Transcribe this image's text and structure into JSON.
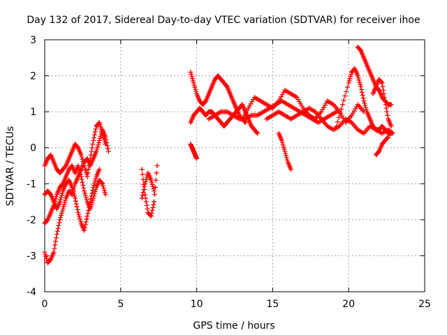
{
  "chart_data": {
    "type": "scatter",
    "title": "Day 132 of 2017, Sidereal Day-to-day VTEC variation (SDTVAR) for receiver ihoe",
    "xlabel": "GPS time / hours",
    "ylabel": "SDTVAR / TECUs",
    "xlim": [
      0,
      25
    ],
    "ylim": [
      -4,
      3
    ],
    "xticks": [
      0,
      5,
      10,
      15,
      20,
      25
    ],
    "yticks": [
      -4,
      -3,
      -2,
      -1,
      0,
      1,
      2,
      3
    ],
    "grid": true,
    "marker": "+",
    "color": "#ff0000",
    "series": [
      {
        "name": "trace-1",
        "x": [
          0.0,
          0.2,
          0.4,
          0.6,
          0.8,
          1.0,
          1.2,
          1.4,
          1.6,
          1.8,
          2.0,
          2.2,
          2.4,
          2.6,
          2.8,
          3.0,
          3.2,
          3.4,
          3.6,
          3.8,
          4.0,
          4.2
        ],
        "y": [
          -2.9,
          -3.2,
          -3.1,
          -2.9,
          -2.4,
          -2.0,
          -1.7,
          -1.4,
          -1.2,
          -1.3,
          -1.0,
          -0.8,
          -0.6,
          -0.4,
          -0.3,
          -0.5,
          -0.3,
          -0.1,
          0.2,
          0.5,
          0.3,
          -0.1
        ]
      },
      {
        "name": "trace-2",
        "x": [
          0.0,
          0.2,
          0.4,
          0.6,
          0.8,
          1.0,
          1.2,
          1.4,
          1.6,
          1.8,
          2.0,
          2.2,
          2.4,
          2.6,
          2.8,
          3.0,
          3.2,
          3.4,
          3.6,
          3.8,
          4.0
        ],
        "y": [
          -2.1,
          -2.0,
          -1.8,
          -1.6,
          -1.3,
          -1.1,
          -1.0,
          -0.8,
          -0.6,
          -0.5,
          -0.7,
          -0.5,
          -0.8,
          -1.2,
          -1.5,
          -1.7,
          -1.4,
          -1.1,
          -0.9,
          -1.0,
          -1.3
        ]
      },
      {
        "name": "trace-3",
        "x": [
          0.0,
          0.2,
          0.4,
          0.6,
          0.8,
          1.0,
          1.2,
          1.4,
          1.6,
          1.8,
          2.0,
          2.2,
          2.4,
          2.6,
          2.8,
          3.0,
          3.2,
          3.4,
          3.6,
          3.8,
          4.0
        ],
        "y": [
          -0.5,
          -0.3,
          -0.2,
          -0.4,
          -0.6,
          -0.7,
          -0.6,
          -0.5,
          -0.3,
          -0.1,
          0.1,
          0.0,
          -0.2,
          -0.5,
          -0.8,
          -0.3,
          0.2,
          0.6,
          0.7,
          0.4,
          0.1
        ]
      },
      {
        "name": "trace-4",
        "x": [
          0.0,
          0.2,
          0.4,
          0.6,
          0.8,
          1.0,
          1.2,
          1.4,
          1.6,
          1.8,
          2.0,
          2.2,
          2.4,
          2.6,
          2.8,
          3.0,
          3.2,
          3.4,
          3.6
        ],
        "y": [
          -1.3,
          -1.2,
          -1.3,
          -1.5,
          -1.7,
          -1.5,
          -1.2,
          -1.0,
          -0.9,
          -1.1,
          -1.4,
          -1.8,
          -2.1,
          -2.3,
          -1.9,
          -1.5,
          -1.1,
          -0.8,
          -0.6
        ]
      },
      {
        "name": "trace-5",
        "x": [
          6.4,
          6.6,
          6.8,
          7.0,
          7.2,
          7.4
        ],
        "y": [
          -0.6,
          -1.3,
          -1.8,
          -1.9,
          -1.5,
          -0.5
        ]
      },
      {
        "name": "trace-6",
        "x": [
          6.4,
          6.6,
          6.8,
          7.0,
          7.2
        ],
        "y": [
          -1.4,
          -1.0,
          -0.7,
          -0.9,
          -1.2
        ]
      },
      {
        "name": "trace-7",
        "x": [
          9.6,
          9.8,
          10.0,
          10.2,
          10.4,
          10.6,
          10.8,
          11.0,
          11.2,
          11.4,
          11.6,
          11.8,
          12.0,
          12.2,
          12.4,
          12.6,
          12.8,
          13.0,
          13.2
        ],
        "y": [
          2.1,
          1.8,
          1.5,
          1.3,
          1.2,
          1.3,
          1.5,
          1.7,
          1.9,
          2.0,
          1.9,
          1.8,
          1.7,
          1.5,
          1.3,
          1.1,
          0.9,
          0.8,
          0.7
        ]
      },
      {
        "name": "trace-8",
        "x": [
          9.6,
          9.8,
          10.0,
          10.2,
          10.4,
          10.6,
          10.8,
          11.0,
          11.2,
          11.4,
          11.6,
          11.8,
          12.0,
          12.2,
          12.4,
          12.6,
          12.8,
          13.0,
          13.2,
          13.4,
          13.6,
          13.8,
          14.0
        ],
        "y": [
          0.7,
          0.9,
          1.0,
          1.1,
          1.0,
          0.9,
          1.0,
          1.0,
          0.9,
          0.8,
          0.7,
          0.6,
          0.7,
          0.8,
          0.9,
          1.0,
          1.1,
          1.2,
          1.0,
          0.8,
          0.6,
          0.5,
          0.4
        ]
      },
      {
        "name": "trace-9",
        "x": [
          9.6,
          9.7,
          9.8,
          9.9,
          10.0
        ],
        "y": [
          0.1,
          0.0,
          -0.1,
          -0.2,
          -0.3
        ]
      },
      {
        "name": "trace-10",
        "x": [
          10.8,
          11.2,
          11.6,
          12.0,
          12.4,
          12.8,
          13.2,
          13.6,
          14.0,
          14.4,
          14.8,
          15.2,
          15.6,
          16.0,
          16.4,
          16.8,
          17.2,
          17.6,
          18.0,
          18.4,
          18.8,
          19.2
        ],
        "y": [
          0.8,
          0.9,
          1.0,
          1.0,
          0.9,
          0.8,
          0.8,
          0.9,
          0.9,
          1.0,
          1.1,
          1.2,
          1.3,
          1.2,
          1.1,
          1.0,
          0.9,
          0.8,
          0.7,
          0.8,
          0.9,
          1.0
        ]
      },
      {
        "name": "trace-11",
        "x": [
          13.0,
          13.4,
          13.8,
          14.2,
          14.6,
          15.0,
          15.4,
          15.8,
          16.2,
          16.6,
          17.0,
          17.4,
          17.8,
          18.2,
          18.6,
          19.0,
          19.4,
          19.8,
          20.2,
          20.6,
          21.0
        ],
        "y": [
          0.8,
          1.1,
          1.4,
          1.3,
          1.2,
          1.1,
          1.3,
          1.6,
          1.5,
          1.4,
          1.1,
          0.9,
          0.8,
          1.0,
          1.3,
          1.2,
          1.0,
          0.7,
          0.9,
          1.2,
          1.0
        ]
      },
      {
        "name": "trace-12",
        "x": [
          14.6,
          15.0,
          15.4,
          15.8,
          16.2,
          16.6,
          17.0,
          17.4,
          17.8,
          18.2,
          18.6,
          19.0,
          19.4,
          19.8,
          20.2,
          20.6,
          21.0,
          21.4,
          21.8,
          22.2,
          22.6,
          22.9
        ],
        "y": [
          0.8,
          0.9,
          1.0,
          0.9,
          0.8,
          0.9,
          1.0,
          1.1,
          1.0,
          0.8,
          0.6,
          0.5,
          0.6,
          0.8,
          0.7,
          0.5,
          0.4,
          0.6,
          0.5,
          0.4,
          0.5,
          0.4
        ]
      },
      {
        "name": "trace-13",
        "x": [
          15.4,
          15.6,
          15.8,
          16.0,
          16.2
        ],
        "y": [
          0.4,
          0.2,
          -0.1,
          -0.4,
          -0.6
        ]
      },
      {
        "name": "trace-14",
        "x": [
          19.2,
          19.6,
          20.0,
          20.2,
          20.4,
          20.6,
          20.8,
          21.0,
          21.2,
          21.4,
          21.6,
          21.8,
          22.0,
          22.2,
          22.4,
          22.6,
          22.8
        ],
        "y": [
          0.6,
          1.2,
          1.8,
          2.1,
          2.2,
          2.0,
          1.7,
          1.3,
          1.0,
          0.8,
          0.6,
          0.5,
          0.5,
          0.6,
          0.5,
          0.4,
          0.4
        ]
      },
      {
        "name": "trace-15",
        "x": [
          20.6,
          20.8,
          21.0,
          21.2,
          21.4,
          21.6,
          21.8,
          22.0,
          22.2,
          22.4,
          22.6,
          22.8
        ],
        "y": [
          2.8,
          2.7,
          2.5,
          2.3,
          2.1,
          1.9,
          1.7,
          1.6,
          1.4,
          1.3,
          1.2,
          1.2
        ]
      },
      {
        "name": "trace-16",
        "x": [
          21.6,
          21.8,
          22.0,
          22.2,
          22.4,
          22.6,
          22.8
        ],
        "y": [
          1.5,
          1.7,
          1.9,
          1.8,
          1.3,
          0.8,
          0.6
        ]
      },
      {
        "name": "trace-17",
        "x": [
          21.8,
          22.0,
          22.2,
          22.4,
          22.6
        ],
        "y": [
          -0.2,
          -0.1,
          0.1,
          0.2,
          0.3
        ]
      }
    ]
  }
}
